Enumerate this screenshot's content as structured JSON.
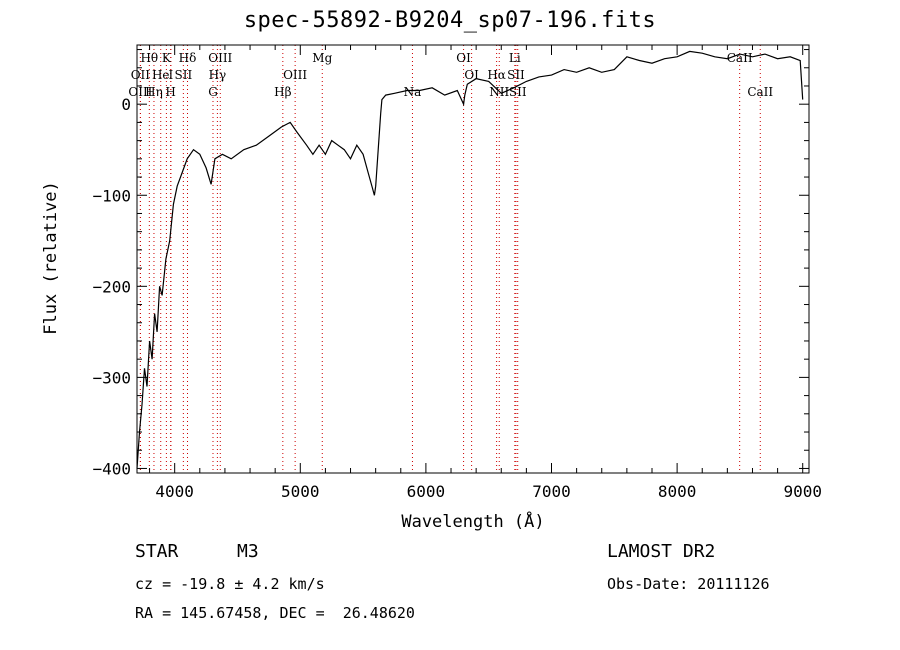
{
  "chart_data": {
    "type": "line",
    "title": "spec-55892-B9204_sp07-196.fits",
    "xlabel": "Wavelength (Å)",
    "ylabel": "Flux (relative)",
    "xlim": [
      3700,
      9050
    ],
    "ylim": [
      -405,
      65
    ],
    "x_ticks": [
      4000,
      5000,
      6000,
      7000,
      8000,
      9000
    ],
    "y_ticks": [
      0,
      -100,
      -200,
      -300,
      -400
    ],
    "series": [
      {
        "color": "#000000",
        "x": [
          3700,
          3720,
          3740,
          3760,
          3780,
          3800,
          3820,
          3840,
          3860,
          3880,
          3900,
          3930,
          3960,
          3990,
          4020,
          4060,
          4100,
          4150,
          4200,
          4250,
          4290,
          4320,
          4380,
          4450,
          4550,
          4650,
          4750,
          4850,
          4920,
          4970,
          5050,
          5100,
          5150,
          5200,
          5250,
          5300,
          5350,
          5400,
          5450,
          5500,
          5540,
          5570,
          5590,
          5600,
          5620,
          5640,
          5650,
          5680,
          5750,
          5850,
          5950,
          6050,
          6150,
          6250,
          6300,
          6310,
          6330,
          6400,
          6500,
          6600,
          6700,
          6800,
          6900,
          7000,
          7100,
          7200,
          7300,
          7400,
          7500,
          7600,
          7700,
          7800,
          7900,
          8000,
          8100,
          8200,
          8300,
          8400,
          8500,
          8600,
          8700,
          8800,
          8900,
          8980,
          9000
        ],
        "y": [
          -400,
          -360,
          -330,
          -290,
          -310,
          -260,
          -280,
          -230,
          -250,
          -200,
          -210,
          -170,
          -150,
          -110,
          -90,
          -75,
          -60,
          -50,
          -55,
          -70,
          -88,
          -60,
          -55,
          -60,
          -50,
          -45,
          -35,
          -25,
          -20,
          -30,
          -45,
          -55,
          -45,
          -55,
          -40,
          -45,
          -50,
          -60,
          -45,
          -55,
          -75,
          -90,
          -100,
          -90,
          -50,
          -10,
          5,
          10,
          12,
          15,
          15,
          18,
          10,
          15,
          0,
          10,
          22,
          28,
          25,
          12,
          18,
          25,
          30,
          32,
          38,
          35,
          40,
          35,
          38,
          52,
          48,
          45,
          50,
          52,
          58,
          56,
          52,
          50,
          55,
          52,
          55,
          50,
          52,
          48,
          5
        ]
      }
    ],
    "line_markers": [
      {
        "label": "Hθ",
        "wavelength": 3798,
        "row": "top"
      },
      {
        "label": "K",
        "wavelength": 3934,
        "row": "top"
      },
      {
        "label": "Hδ",
        "wavelength": 4102,
        "row": "top"
      },
      {
        "label": "OIII",
        "wavelength": 4363,
        "row": "top"
      },
      {
        "label": "Mg",
        "wavelength": 5175,
        "row": "top"
      },
      {
        "label": "OI",
        "wavelength": 6300,
        "row": "top"
      },
      {
        "label": "Li",
        "wavelength": 6708,
        "row": "top"
      },
      {
        "label": "CaII",
        "wavelength": 8498,
        "row": "top"
      },
      {
        "label": "OII",
        "wavelength": 3727,
        "row": "middle"
      },
      {
        "label": "He",
        "wavelength": 3889,
        "row": "middle"
      },
      {
        "label": "I",
        "wavelength": 3970,
        "row": "middle"
      },
      {
        "label": "SII",
        "wavelength": 4069,
        "row": "middle"
      },
      {
        "label": "Hγ",
        "wavelength": 4340,
        "row": "middle"
      },
      {
        "label": "OIII",
        "wavelength": 4959,
        "row": "middle"
      },
      {
        "label": "OI",
        "wavelength": 6364,
        "row": "middle"
      },
      {
        "label": "Hα",
        "wavelength": 6563,
        "row": "middle"
      },
      {
        "label": "SII",
        "wavelength": 6717,
        "row": "middle"
      },
      {
        "label": "OIII",
        "wavelength": 3727,
        "row": "bottom"
      },
      {
        "label": "Hη",
        "wavelength": 3835,
        "row": "bottom"
      },
      {
        "label": "H",
        "wavelength": 3968,
        "row": "bottom"
      },
      {
        "label": "G",
        "wavelength": 4305,
        "row": "bottom"
      },
      {
        "label": "Hβ",
        "wavelength": 4861,
        "row": "bottom"
      },
      {
        "label": "Na",
        "wavelength": 5893,
        "row": "bottom"
      },
      {
        "label": "NII",
        "wavelength": 6584,
        "row": "bottom"
      },
      {
        "label": "SII",
        "wavelength": 6731,
        "row": "bottom"
      },
      {
        "label": "CaII",
        "wavelength": 8662,
        "row": "bottom"
      }
    ],
    "marker_color": "#cc0000"
  },
  "info": {
    "object_class": "STAR",
    "subclass": "M3",
    "redshift": "cz = -19.8 ± 4.2 km/s",
    "coords": "RA = 145.67458, DEC =  26.48620",
    "survey": "LAMOST DR2",
    "obs_date": "Obs-Date: 20111126"
  }
}
